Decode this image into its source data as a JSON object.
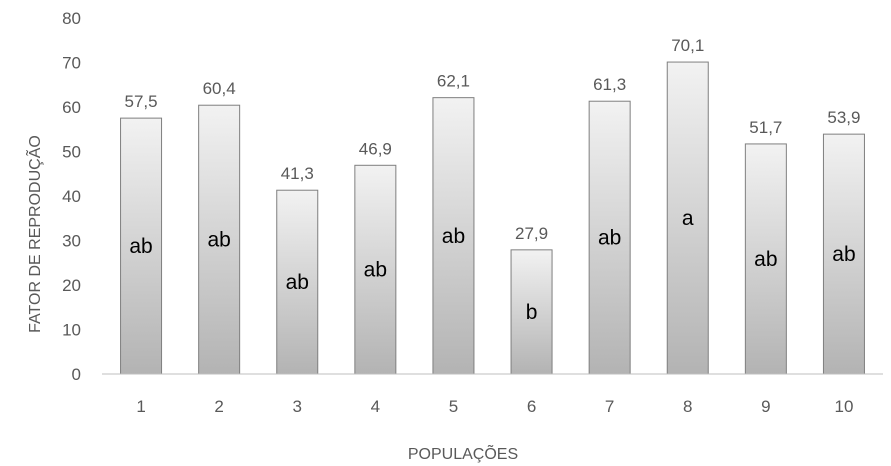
{
  "chart_data": {
    "type": "bar",
    "xlabel": "POPULAÇÕES",
    "ylabel": "FATOR DE REPRODUÇÃO",
    "ylim": [
      0,
      80
    ],
    "yticks": [
      "0",
      "10",
      "20",
      "30",
      "40",
      "50",
      "60",
      "70",
      "80"
    ],
    "grid": false,
    "categories": [
      "1",
      "2",
      "3",
      "4",
      "5",
      "6",
      "7",
      "8",
      "9",
      "10"
    ],
    "values": [
      57.5,
      60.4,
      41.3,
      46.9,
      62.1,
      27.9,
      61.3,
      70.1,
      51.7,
      53.9
    ],
    "value_labels": [
      "57,5",
      "60,4",
      "41,3",
      "46,9",
      "62,1",
      "27,9",
      "61,3",
      "70,1",
      "51,7",
      "53,9"
    ],
    "group_letters": [
      "ab",
      "ab",
      "ab",
      "ab",
      "ab",
      "b",
      "ab",
      "a",
      "ab",
      "ab"
    ],
    "colors": {
      "bar_top": "#f2f2f2",
      "bar_bottom": "#b3b3b3",
      "bar_stroke": "#7f7f7f",
      "axis": "#bfbfbf",
      "text": "#595959"
    }
  }
}
